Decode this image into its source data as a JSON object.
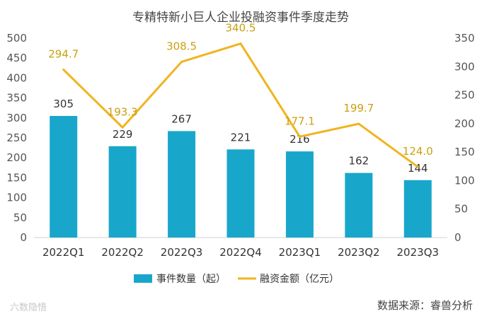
{
  "chart_data": {
    "type": "bar+line",
    "title": "专精特新小巨人企业投融资事件季度走势",
    "categories": [
      "2022Q1",
      "2022Q2",
      "2022Q3",
      "2022Q4",
      "2023Q1",
      "2023Q2",
      "2023Q3"
    ],
    "series": [
      {
        "name": "事件数量（起）",
        "type": "bar",
        "axis": "left",
        "values": [
          305,
          229,
          267,
          221,
          216,
          162,
          144
        ],
        "color": "#18a7cb"
      },
      {
        "name": "融资金额（亿元）",
        "type": "line",
        "axis": "right",
        "values": [
          294.7,
          193.3,
          308.5,
          340.5,
          177.1,
          199.7,
          124.0
        ],
        "labels": [
          "294.7",
          "193.3",
          "308.5",
          "340.5",
          "177.1",
          "199.7",
          "124.0"
        ],
        "color": "#f0b41e"
      }
    ],
    "y_left": {
      "min": 0,
      "max": 500,
      "ticks": [
        "0",
        "50",
        "100",
        "150",
        "200",
        "250",
        "300",
        "350",
        "400",
        "450",
        "500"
      ]
    },
    "y_right": {
      "min": 0,
      "max": 350,
      "ticks": [
        "0",
        "50",
        "100",
        "150",
        "200",
        "250",
        "300",
        "350"
      ]
    },
    "legend_position": "bottom"
  },
  "source": "数据来源：睿兽分析",
  "watermark": "六数隐悟"
}
